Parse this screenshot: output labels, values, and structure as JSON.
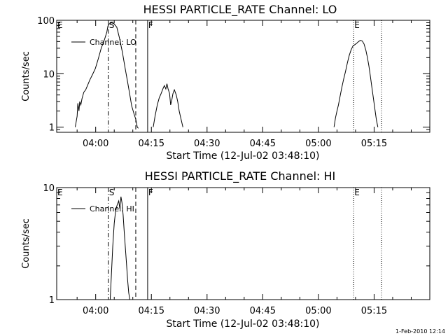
{
  "footer": {
    "timestamp": "1-Feb-2010 12:14"
  },
  "chart_data": [
    {
      "type": "line",
      "title": "HESSI PARTICLE_RATE Channel: LO",
      "xlabel": "Start Time (12-Jul-02 03:48:10)",
      "ylabel": "Counts/sec",
      "yscale": "log",
      "xlim_minutes_of_day": [
        229.5,
        330.0
      ],
      "ylim": [
        0.8,
        100
      ],
      "x_ticks": [
        {
          "label": "04:00",
          "t": 240
        },
        {
          "label": "04:15",
          "t": 255
        },
        {
          "label": "04:30",
          "t": 270
        },
        {
          "label": "04:45",
          "t": 285
        },
        {
          "label": "05:00",
          "t": 300
        },
        {
          "label": "05:15",
          "t": 315
        }
      ],
      "y_ticks": [
        {
          "label": "1",
          "v": 1
        },
        {
          "label": "10",
          "v": 10
        },
        {
          "label": "100",
          "v": 100
        }
      ],
      "legend": {
        "label": "Channel: LO",
        "placement": "top-left"
      },
      "markers": [
        {
          "label": "E",
          "t": 229.5,
          "style": "none"
        },
        {
          "label": "S",
          "t": 243.4,
          "style": "dashdot"
        },
        {
          "label": "",
          "t": 250.8,
          "style": "dashed"
        },
        {
          "label": "F",
          "t": 254.0,
          "style": "solid"
        },
        {
          "label": "E",
          "t": 309.5,
          "style": "dotted"
        },
        {
          "label": "",
          "t": 317.0,
          "style": "dotted"
        }
      ],
      "segments": [
        {
          "t": [
            234.5,
            235.0,
            235.2,
            235.5,
            235.7,
            236.0,
            236.3,
            236.8,
            237.3,
            237.8,
            238.4,
            239.2,
            239.9,
            240.7,
            241.5,
            242.4,
            243.0,
            243.3,
            243.6,
            244.2,
            244.9,
            245.7,
            246.4,
            247.2,
            248.0,
            248.6,
            249.2,
            249.7,
            250.3,
            250.8,
            251.2,
            251.5
          ],
          "values": [
            1.0,
            1.6,
            2.8,
            2.0,
            3.0,
            2.6,
            3.4,
            4.5,
            5.0,
            6.0,
            7.6,
            9.8,
            12.5,
            19.0,
            30.0,
            44.0,
            60.0,
            78.0,
            85.0,
            90.0,
            87.0,
            74.0,
            47.0,
            25.0,
            12.0,
            7.0,
            4.0,
            2.5,
            1.8,
            1.4,
            1.0,
            0.95
          ]
        },
        {
          "t": [
            255.5,
            256.0,
            256.6,
            257.1,
            257.6,
            258.1,
            258.5,
            258.9,
            259.2,
            259.5,
            259.9,
            260.2,
            260.5,
            260.8,
            261.2,
            261.7,
            262.1,
            262.5,
            263.0,
            263.5
          ],
          "values": [
            1.0,
            1.6,
            2.6,
            3.5,
            4.2,
            5.2,
            6.0,
            5.2,
            6.5,
            5.2,
            4.3,
            2.6,
            3.2,
            4.2,
            5.0,
            4.0,
            3.0,
            2.0,
            1.4,
            1.0
          ]
        },
        {
          "t": [
            304.2,
            304.6,
            305.0,
            305.4,
            305.9,
            306.3,
            306.8,
            307.3,
            307.8,
            308.3,
            308.8,
            309.3,
            309.8,
            310.3,
            310.8,
            311.3,
            311.8,
            312.3,
            312.8,
            313.2,
            313.6,
            314.0,
            314.4,
            314.8,
            315.2,
            315.6,
            316.0
          ],
          "values": [
            1.0,
            1.5,
            2.0,
            2.6,
            4.0,
            5.5,
            8.0,
            11.0,
            16.0,
            22.0,
            28.0,
            33.0,
            35.0,
            37.0,
            40.0,
            42.0,
            41.0,
            36.0,
            27.0,
            20.0,
            14.0,
            9.0,
            5.5,
            3.5,
            2.2,
            1.4,
            1.0
          ]
        }
      ]
    },
    {
      "type": "line",
      "title": "HESSI PARTICLE_RATE Channel: HI",
      "xlabel": "Start Time (12-Jul-02 03:48:10)",
      "ylabel": "Counts/sec",
      "yscale": "log",
      "xlim_minutes_of_day": [
        229.5,
        330.0
      ],
      "ylim": [
        1,
        10
      ],
      "x_ticks": [
        {
          "label": "04:00",
          "t": 240
        },
        {
          "label": "04:15",
          "t": 255
        },
        {
          "label": "04:30",
          "t": 270
        },
        {
          "label": "04:45",
          "t": 285
        },
        {
          "label": "05:00",
          "t": 300
        },
        {
          "label": "05:15",
          "t": 315
        }
      ],
      "y_ticks": [
        {
          "label": "1",
          "v": 1
        },
        {
          "label": "10",
          "v": 10
        }
      ],
      "legend": {
        "label": "Channel: HI",
        "placement": "top-left"
      },
      "markers": [
        {
          "label": "E",
          "t": 229.5,
          "style": "none"
        },
        {
          "label": "S",
          "t": 243.4,
          "style": "dashdot"
        },
        {
          "label": "",
          "t": 250.8,
          "style": "dashed"
        },
        {
          "label": "F",
          "t": 254.0,
          "style": "solid"
        },
        {
          "label": "E",
          "t": 309.5,
          "style": "dotted"
        },
        {
          "label": "",
          "t": 317.0,
          "style": "dotted"
        }
      ],
      "segments": [
        {
          "t": [
            243.9,
            244.2,
            244.6,
            245.0,
            245.4,
            245.8,
            246.2,
            246.5,
            246.8,
            247.1,
            247.4,
            247.7,
            248.0,
            248.3,
            248.6,
            248.9,
            249.2
          ],
          "values": [
            1.0,
            1.6,
            3.0,
            4.8,
            6.3,
            7.0,
            7.6,
            6.5,
            8.3,
            7.3,
            5.7,
            4.0,
            2.9,
            2.1,
            1.5,
            1.15,
            1.0
          ]
        }
      ]
    }
  ]
}
